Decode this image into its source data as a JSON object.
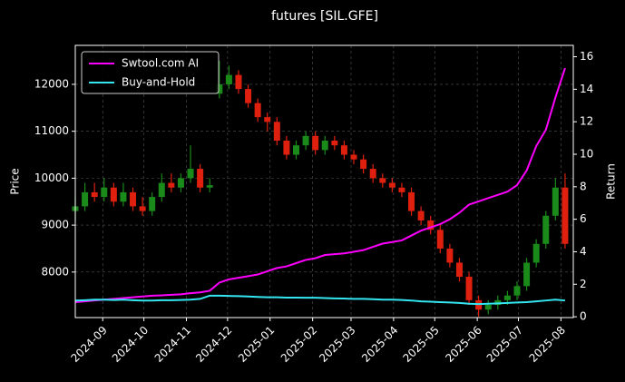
{
  "chart_data": {
    "type": "candlestick",
    "title": "futures [SIL.GFE]",
    "ylabel": "Price",
    "y2label": "Return",
    "x": [
      "2024-08-12",
      "2024-08-19",
      "2024-08-26",
      "2024-09-02",
      "2024-09-09",
      "2024-09-16",
      "2024-09-23",
      "2024-09-30",
      "2024-10-07",
      "2024-10-14",
      "2024-10-21",
      "2024-10-28",
      "2024-11-04",
      "2024-11-11",
      "2024-11-18",
      "2024-11-25",
      "2024-12-02",
      "2024-12-09",
      "2024-12-16",
      "2024-12-23",
      "2024-12-30",
      "2025-01-06",
      "2025-01-13",
      "2025-01-20",
      "2025-01-27",
      "2025-02-03",
      "2025-02-10",
      "2025-02-17",
      "2025-02-24",
      "2025-03-03",
      "2025-03-10",
      "2025-03-17",
      "2025-03-24",
      "2025-03-31",
      "2025-04-07",
      "2025-04-14",
      "2025-04-21",
      "2025-04-28",
      "2025-05-05",
      "2025-05-12",
      "2025-05-19",
      "2025-05-26",
      "2025-06-02",
      "2025-06-09",
      "2025-06-16",
      "2025-06-23",
      "2025-06-30",
      "2025-07-07",
      "2025-07-14",
      "2025-07-21",
      "2025-07-28",
      "2025-08-04"
    ],
    "open": [
      9300,
      9400,
      9700,
      9600,
      9800,
      9500,
      9700,
      9400,
      9300,
      9600,
      9900,
      9800,
      10000,
      10200,
      9800,
      11800,
      12000,
      12200,
      11900,
      11600,
      11300,
      11200,
      10800,
      10500,
      10700,
      10900,
      10600,
      10800,
      10700,
      10500,
      10400,
      10200,
      10000,
      9900,
      9800,
      9700,
      9300,
      9100,
      8900,
      8500,
      8200,
      7900,
      7400,
      7200,
      7300,
      7400,
      7500,
      7700,
      8200,
      8600,
      9200,
      9800
    ],
    "high": [
      9600,
      9900,
      9900,
      10000,
      9900,
      9900,
      9800,
      9600,
      9700,
      10100,
      10100,
      10100,
      10700,
      10300,
      10000,
      12500,
      12400,
      12300,
      12000,
      11700,
      11400,
      11300,
      10900,
      10800,
      11000,
      11000,
      10900,
      10900,
      10800,
      10600,
      10500,
      10300,
      10100,
      10000,
      9900,
      9800,
      9400,
      9200,
      9000,
      8600,
      8300,
      8000,
      7500,
      7400,
      7500,
      7600,
      7800,
      8300,
      8700,
      9300,
      10000,
      10100
    ],
    "low": [
      9100,
      9300,
      9500,
      9500,
      9400,
      9400,
      9300,
      9200,
      9200,
      9500,
      9700,
      9700,
      9900,
      9700,
      9700,
      11700,
      11900,
      11800,
      11500,
      11200,
      11000,
      10700,
      10400,
      10400,
      10600,
      10500,
      10500,
      10600,
      10400,
      10300,
      10100,
      9900,
      9800,
      9700,
      9600,
      9200,
      9000,
      8800,
      8400,
      8100,
      7800,
      7300,
      7050,
      7100,
      7200,
      7300,
      7400,
      7600,
      8100,
      8500,
      9100,
      8500
    ],
    "close": [
      9400,
      9700,
      9600,
      9800,
      9500,
      9700,
      9400,
      9300,
      9600,
      9900,
      9800,
      10000,
      10200,
      9800,
      9850,
      12000,
      12200,
      11900,
      11600,
      11300,
      11200,
      10800,
      10500,
      10700,
      10900,
      10600,
      10800,
      10700,
      10500,
      10400,
      10200,
      10000,
      9900,
      9800,
      9700,
      9300,
      9100,
      8900,
      8500,
      8200,
      7900,
      7400,
      7200,
      7300,
      7400,
      7500,
      7700,
      8200,
      8600,
      9200,
      9800,
      8600
    ],
    "up_color": "#1a8a1a",
    "down_color": "#e0200f",
    "series": [
      {
        "name": "Swtool.com AI",
        "color": "#ff00ff",
        "axis": "y2",
        "values": [
          0.9,
          0.95,
          1.0,
          1.05,
          1.1,
          1.15,
          1.2,
          1.25,
          1.3,
          1.32,
          1.35,
          1.38,
          1.45,
          1.5,
          1.6,
          2.1,
          2.3,
          2.4,
          2.5,
          2.6,
          2.8,
          3.0,
          3.1,
          3.3,
          3.5,
          3.6,
          3.8,
          3.85,
          3.9,
          4.0,
          4.1,
          4.3,
          4.5,
          4.6,
          4.7,
          5.0,
          5.3,
          5.5,
          5.7,
          6.0,
          6.4,
          6.9,
          7.1,
          7.3,
          7.5,
          7.7,
          8.1,
          9.0,
          10.5,
          11.5,
          13.5,
          15.3
        ]
      },
      {
        "name": "Buy-and-Hold",
        "color": "#33e6f0",
        "axis": "y2",
        "values": [
          1.0,
          1.02,
          1.05,
          1.05,
          1.03,
          1.05,
          1.02,
          1.0,
          1.0,
          1.02,
          1.02,
          1.03,
          1.05,
          1.1,
          1.3,
          1.3,
          1.28,
          1.27,
          1.25,
          1.22,
          1.2,
          1.2,
          1.18,
          1.18,
          1.17,
          1.17,
          1.15,
          1.13,
          1.12,
          1.1,
          1.1,
          1.08,
          1.05,
          1.05,
          1.03,
          1.0,
          0.95,
          0.93,
          0.9,
          0.88,
          0.85,
          0.8,
          0.78,
          0.8,
          0.82,
          0.85,
          0.88,
          0.9,
          0.95,
          1.0,
          1.05,
          1.0
        ]
      }
    ],
    "xlim": [
      "2024-08-12",
      "2025-08-10"
    ],
    "xticks": [
      "2024-09",
      "2024-10",
      "2024-11",
      "2024-12",
      "2025-01",
      "2025-02",
      "2025-03",
      "2025-04",
      "2025-05",
      "2025-06",
      "2025-07",
      "2025-08"
    ],
    "ylim": [
      7030,
      12830
    ],
    "yticks": [
      8000,
      9000,
      10000,
      11000,
      12000
    ],
    "y2lim": [
      -0.05,
      16.7
    ],
    "y2ticks": [
      0,
      2,
      4,
      6,
      8,
      10,
      12,
      14,
      16
    ],
    "grid": true,
    "legend": "upper left"
  }
}
